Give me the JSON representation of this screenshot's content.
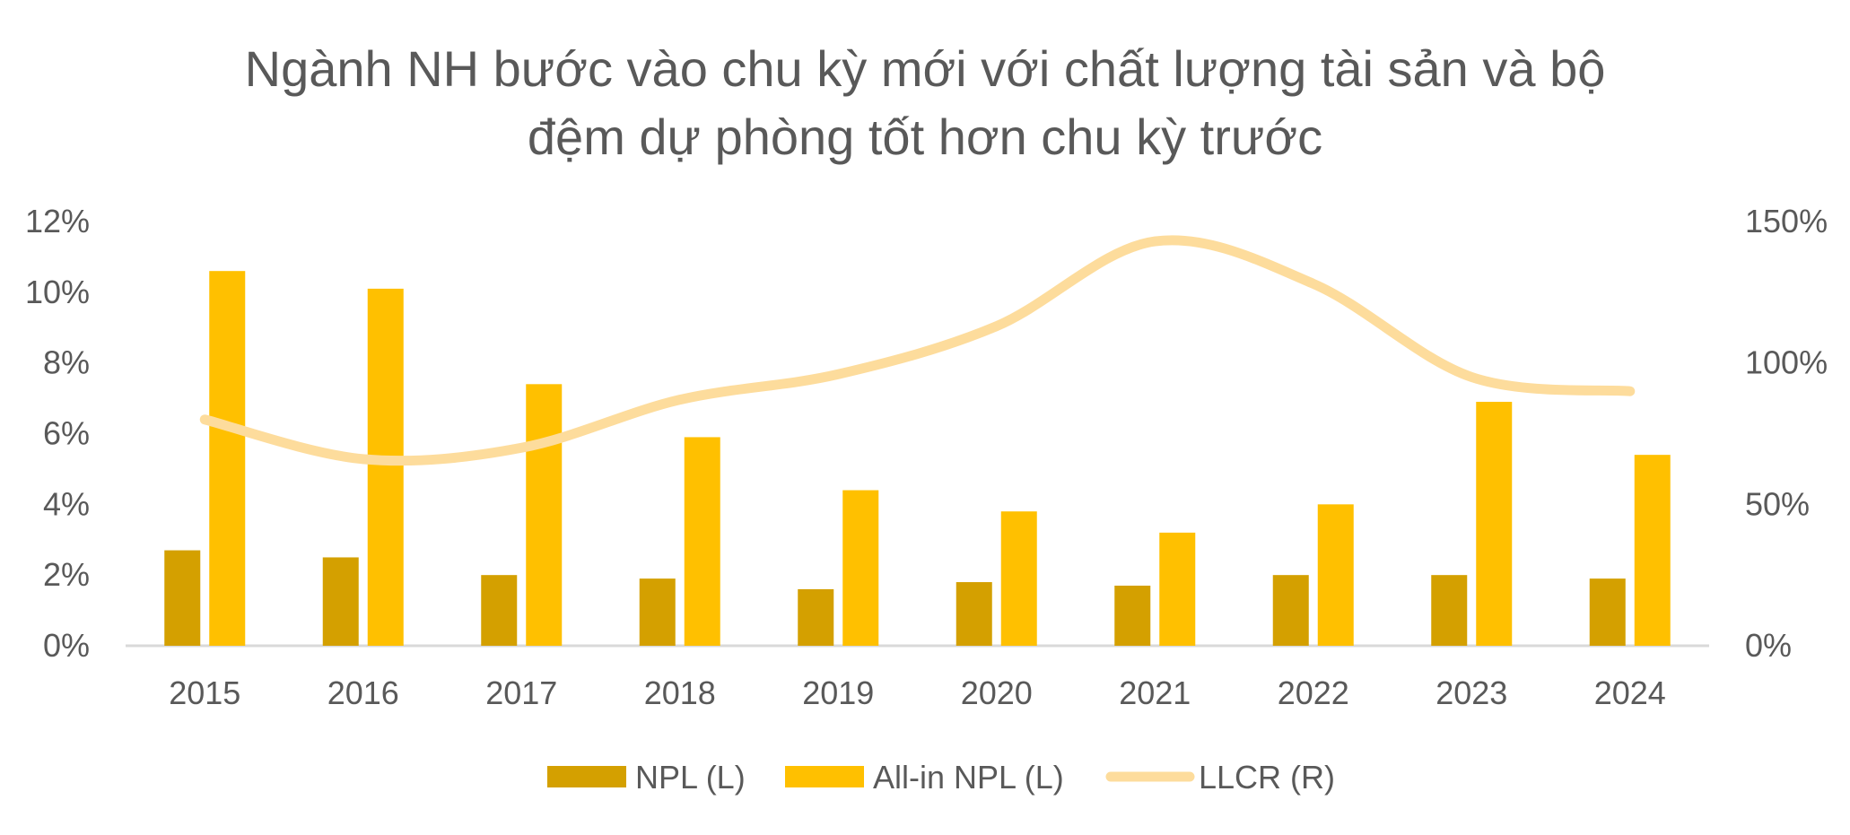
{
  "chart_data": {
    "type": "bar",
    "title": [
      "Ngành NH bước vào chu kỳ mới với chất lượng tài sản và bộ",
      "đệm dự phòng tốt hơn chu kỳ trước"
    ],
    "categories": [
      "2015",
      "2016",
      "2017",
      "2018",
      "2019",
      "2020",
      "2021",
      "2022",
      "2023",
      "2024"
    ],
    "series": [
      {
        "name": "NPL (L)",
        "type": "bar",
        "axis": "left",
        "color": "#D4A000",
        "values": [
          2.7,
          2.5,
          2.0,
          1.9,
          1.6,
          1.8,
          1.7,
          2.0,
          2.0,
          1.9
        ]
      },
      {
        "name": "All-in NPL (L)",
        "type": "bar",
        "axis": "left",
        "color": "#FFC000",
        "values": [
          10.6,
          10.1,
          7.4,
          5.9,
          4.4,
          3.8,
          3.2,
          4.0,
          6.9,
          5.4
        ]
      },
      {
        "name": "LLCR (R)",
        "type": "line",
        "axis": "right",
        "smooth": true,
        "color": "#FDDC9C",
        "values": [
          80,
          66,
          70,
          87,
          96,
          113,
          143,
          128,
          95,
          90
        ]
      }
    ],
    "y_left": {
      "ylim": [
        0,
        12
      ],
      "ticks": [
        "0%",
        "2%",
        "4%",
        "6%",
        "8%",
        "10%",
        "12%"
      ]
    },
    "y_right": {
      "ylim": [
        0,
        150
      ],
      "ticks": [
        "0%",
        "50%",
        "100%",
        "150%"
      ]
    },
    "grid": false,
    "legend_position": "bottom"
  }
}
